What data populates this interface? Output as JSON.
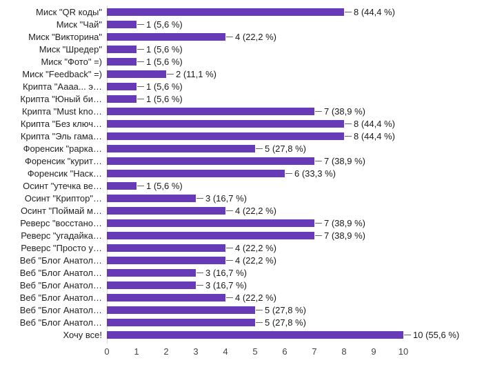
{
  "chart_data": {
    "type": "bar",
    "orientation": "horizontal",
    "title": "",
    "xlabel": "",
    "ylabel": "",
    "xlim": [
      0,
      10
    ],
    "grid": false,
    "bar_color": "#673ab7",
    "x_ticks": [
      "0",
      "1",
      "2",
      "3",
      "4",
      "5",
      "6",
      "7",
      "8",
      "9",
      "10"
    ],
    "categories": [
      "Миск \"QR коды\"",
      "Миск \"Чай\"",
      "Миск \"Викторина\"",
      "Миск \"Шредер\"",
      "Миск \"Фото\" =)",
      "Миск \"Feedback\" =)",
      "Крипта \"Аааа... э…",
      "Крипта \"Юный би…",
      "Крипта \"Must kno…",
      "Крипта \"Без ключ…",
      "Крипта \"Эль гама…",
      "Форенсик \"рарка…",
      "Форенсик \"курит…",
      "Форенсик \"Наск…",
      "Осинт \"утечка ве…",
      "Осинт \"Криптор\"…",
      "Осинт \"Поймай м…",
      "Реверс \"восстано…",
      "Реверс \"угадайка…",
      "Реверс \"Просто у…",
      "Веб \"Блог Анатол…",
      "Веб \"Блог Анатол…",
      "Веб \"Блог Анатол…",
      "Веб \"Блог Анатол…",
      "Веб \"Блог Анатол…",
      "Веб \"Блог Анатол…",
      "Хочу все!"
    ],
    "values": [
      8,
      1,
      4,
      1,
      1,
      2,
      1,
      1,
      7,
      8,
      8,
      5,
      7,
      6,
      1,
      3,
      4,
      7,
      7,
      4,
      4,
      3,
      3,
      4,
      5,
      5,
      10
    ],
    "value_labels": [
      "8 (44,4 %)",
      "1 (5,6 %)",
      "4 (22,2 %)",
      "1 (5,6 %)",
      "1 (5,6 %)",
      "2 (11,1 %)",
      "1 (5,6 %)",
      "1 (5,6 %)",
      "7 (38,9 %)",
      "8 (44,4 %)",
      "8 (44,4 %)",
      "5 (27,8 %)",
      "7 (38,9 %)",
      "6 (33,3 %)",
      "1 (5,6 %)",
      "3 (16,7 %)",
      "4 (22,2 %)",
      "7 (38,9 %)",
      "7 (38,9 %)",
      "4 (22,2 %)",
      "4 (22,2 %)",
      "3 (16,7 %)",
      "3 (16,7 %)",
      "4 (22,2 %)",
      "5 (27,8 %)",
      "5 (27,8 %)",
      "10 (55,6 %)"
    ]
  }
}
